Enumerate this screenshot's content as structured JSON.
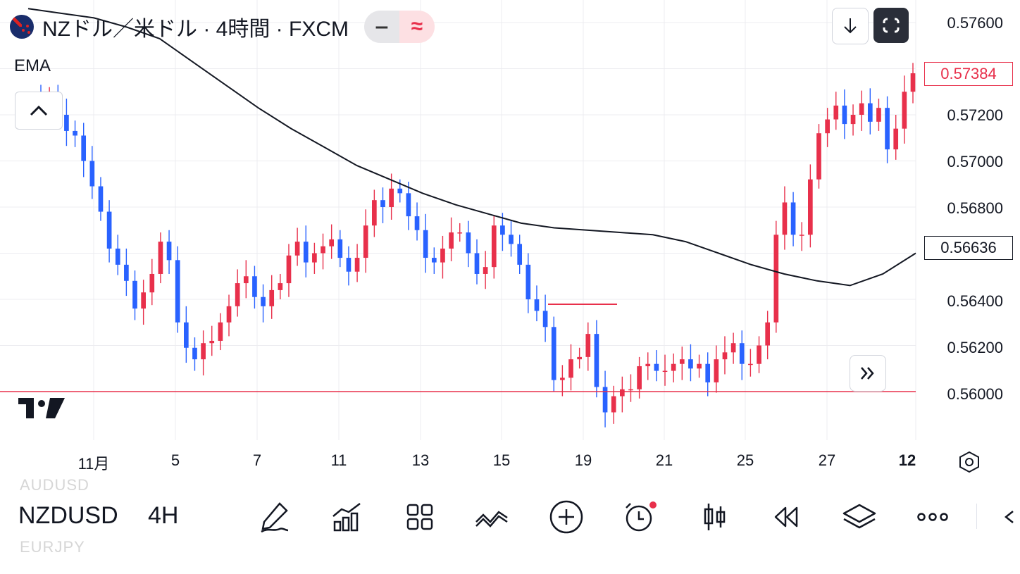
{
  "header": {
    "title": "NZドル／米ドル · 4時間 · FXCM",
    "pill_left": "‒",
    "pill_right": "≈",
    "indicator_label": "EMA"
  },
  "price_axis": {
    "ticks": [
      "0.57600",
      "0.57200",
      "0.57000",
      "0.56800",
      "0.56400",
      "0.56200",
      "0.56000"
    ],
    "current_price": "0.57384",
    "ema_value": "0.56636"
  },
  "time_axis": {
    "ticks": [
      "11月",
      "5",
      "7",
      "11",
      "13",
      "15",
      "19",
      "21",
      "25",
      "27",
      "12"
    ]
  },
  "toolbar": {
    "symbol": "NZDUSD",
    "symbol_above": "AUDUSD",
    "symbol_below": "EURJPY",
    "interval": "4H",
    "tools": [
      "pen-icon",
      "indicators-icon",
      "templates-icon",
      "compare-icon",
      "add-icon",
      "alert-icon",
      "candles-icon",
      "replay-icon",
      "layers-icon",
      "more-icon",
      "back-icon"
    ]
  },
  "colors": {
    "up": "#e8304b",
    "down": "#2962ff",
    "ema": "#131722",
    "grid": "#ececf0",
    "current_price_line": "#e8304b"
  },
  "chart_data": {
    "type": "candlestick",
    "symbol": "NZDUSD",
    "timeframe": "4H",
    "ylim": [
      0.5585,
      0.5767
    ],
    "indicator": "EMA",
    "current_price": 0.57384,
    "ema_last": 0.56636,
    "ema": [
      0.5766,
      0.5764,
      0.5762,
      0.5758,
      0.5753,
      0.5743,
      0.5733,
      0.5723,
      0.5714,
      0.5706,
      0.5698,
      0.5692,
      0.5686,
      0.5681,
      0.5677,
      0.5673,
      0.5671,
      0.567,
      0.5669,
      0.5668,
      0.5665,
      0.566,
      0.5655,
      0.5651,
      0.5648,
      0.5646,
      0.5651,
      0.566
    ],
    "candles_open": [
      0.5729,
      0.5723,
      0.5727,
      0.572,
      0.5713,
      0.5711,
      0.57,
      0.5689,
      0.5678,
      0.5662,
      0.5655,
      0.5648,
      0.5636,
      0.5643,
      0.5651,
      0.5665,
      0.5657,
      0.563,
      0.5619,
      0.5614,
      0.5621,
      0.5622,
      0.563,
      0.5637,
      0.5647,
      0.565,
      0.5641,
      0.5637,
      0.5644,
      0.5647,
      0.5659,
      0.5665,
      0.5656,
      0.566,
      0.5663,
      0.5666,
      0.5658,
      0.5652,
      0.5658,
      0.5672,
      0.5683,
      0.568,
      0.5688,
      0.5686,
      0.5676,
      0.567,
      0.5658,
      0.5656,
      0.5662,
      0.5669,
      0.5669,
      0.566,
      0.5651,
      0.5654,
      0.5672,
      0.5668,
      0.5664,
      0.5655,
      0.564,
      0.5635,
      0.5628,
      0.5605,
      0.5606,
      0.5614,
      0.5615,
      0.5625,
      0.5602,
      0.5591,
      0.5598,
      0.5601,
      0.5601,
      0.5611,
      0.5612,
      0.5609,
      0.5609,
      0.5612,
      0.5614,
      0.561,
      0.5612,
      0.5604,
      0.5614,
      0.5617,
      0.5621,
      0.5612,
      0.5612,
      0.562,
      0.563,
      0.5668,
      0.5682,
      0.5668,
      0.5668,
      0.5692,
      0.5712,
      0.5718,
      0.5724,
      0.5716,
      0.572,
      0.5725,
      0.5717,
      0.5723,
      0.5705,
      0.5714,
      0.573
    ],
    "candles_close": [
      0.5723,
      0.5727,
      0.572,
      0.5713,
      0.5711,
      0.57,
      0.5689,
      0.5678,
      0.5662,
      0.5655,
      0.5648,
      0.5636,
      0.5643,
      0.5651,
      0.5665,
      0.5657,
      0.563,
      0.5619,
      0.5614,
      0.5621,
      0.5622,
      0.563,
      0.5637,
      0.5647,
      0.565,
      0.5641,
      0.5637,
      0.5644,
      0.5647,
      0.5659,
      0.5665,
      0.5656,
      0.566,
      0.5663,
      0.5666,
      0.5658,
      0.5652,
      0.5658,
      0.5672,
      0.5683,
      0.568,
      0.5688,
      0.5686,
      0.5676,
      0.567,
      0.5658,
      0.5656,
      0.5662,
      0.5669,
      0.5669,
      0.566,
      0.5651,
      0.5654,
      0.5672,
      0.5668,
      0.5664,
      0.5655,
      0.564,
      0.5635,
      0.5628,
      0.5605,
      0.5606,
      0.5614,
      0.5615,
      0.5625,
      0.5602,
      0.5591,
      0.5598,
      0.5601,
      0.5601,
      0.5611,
      0.5612,
      0.5609,
      0.5609,
      0.5612,
      0.5614,
      0.561,
      0.5612,
      0.5604,
      0.5614,
      0.5617,
      0.5621,
      0.5612,
      0.5612,
      0.562,
      0.563,
      0.5668,
      0.5682,
      0.5668,
      0.5668,
      0.5692,
      0.5712,
      0.5718,
      0.5724,
      0.5716,
      0.572,
      0.5725,
      0.5717,
      0.5723,
      0.5705,
      0.5714,
      0.573,
      0.5738
    ]
  }
}
